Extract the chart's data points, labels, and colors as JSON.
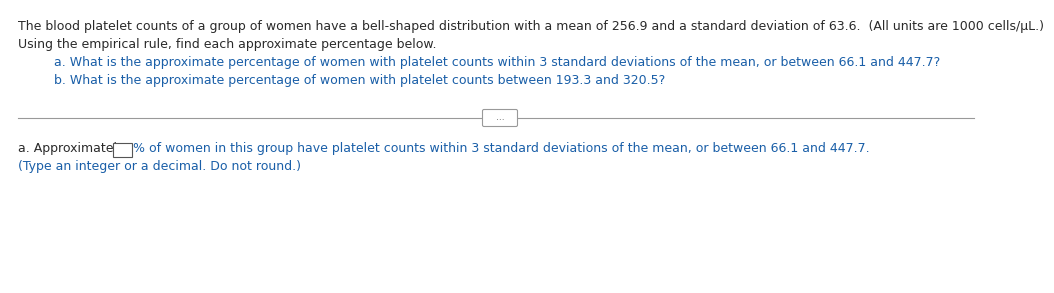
{
  "background_color": "#ffffff",
  "line1": "The blood platelet counts of a group of women have a bell-shaped distribution with a mean of 256.9 and a standard deviation of 63.6.  (All units are 1000 cells/μL.)",
  "line2": "Using the empirical rule, find each approximate percentage below.",
  "qa_text": "a. What is the approximate percentage of women with platelet counts within 3 standard deviations of the mean, or between 66.1 and 447.7?",
  "qb_text": "b. What is the approximate percentage of women with platelet counts between 193.3 and 320.5?",
  "divider_dots": "...",
  "answer_prefix": "a. Approximately ",
  "answer_suffix": "% of women in this group have platelet counts within 3 standard deviations of the mean, or between 66.1 and 447.7.",
  "answer_note": "(Type an integer or a decimal. Do not round.)",
  "color_black": "#2a2a2a",
  "color_blue": "#1a5fa8",
  "color_divider": "#999999",
  "color_box_border": "#555555",
  "font_size": 9.0
}
